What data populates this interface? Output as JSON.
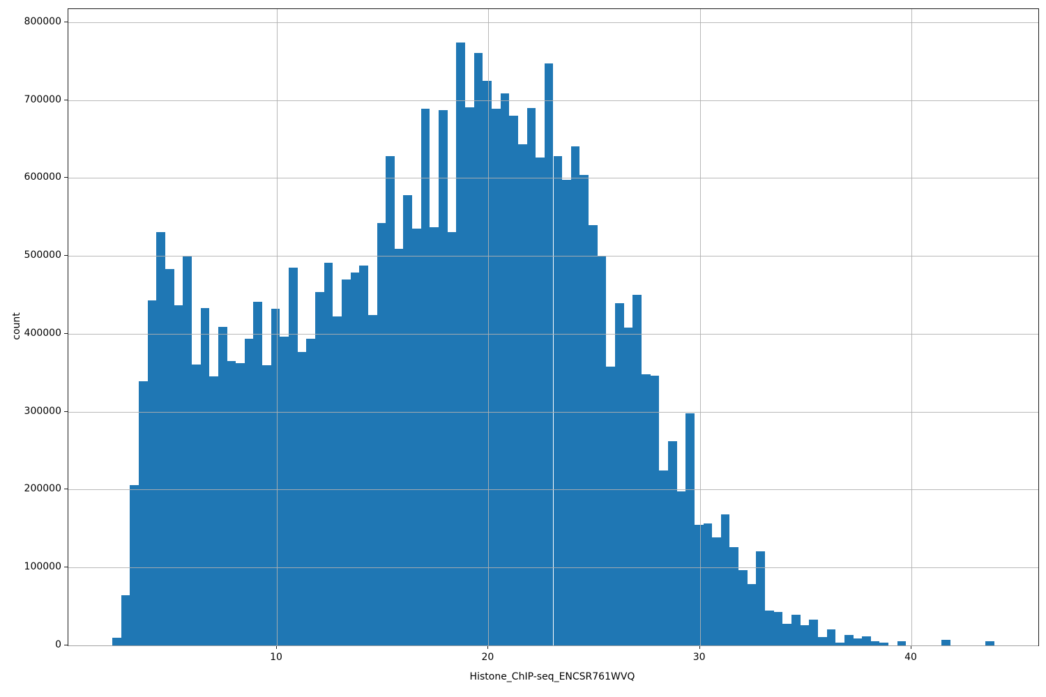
{
  "chart_data": {
    "type": "bar",
    "subtype": "histogram",
    "title": "",
    "xlabel": "Histone_ChIP-seq_ENCSR761WVQ",
    "ylabel": "count",
    "bin_start": 2.22,
    "bin_width": 0.417,
    "counts": [
      9600,
      64700,
      206000,
      339000,
      443000,
      531000,
      483000,
      437000,
      499000,
      361000,
      433000,
      345000,
      409000,
      365000,
      362000,
      394000,
      441000,
      360000,
      432000,
      396000,
      485000,
      377000,
      394000,
      454000,
      491000,
      422000,
      470000,
      479000,
      488000,
      424000,
      542000,
      628000,
      509000,
      578000,
      535000,
      689000,
      537000,
      687000,
      531000,
      774000,
      691000,
      761000,
      725000,
      689000,
      709000,
      680000,
      643000,
      690000,
      626000,
      747000,
      628000,
      598000,
      641000,
      604000,
      540000,
      500000,
      358000,
      439000,
      408000,
      450000,
      348000,
      346000,
      225000,
      262000,
      198000,
      298000,
      155000,
      157000,
      139000,
      168000,
      126000,
      97000,
      79000,
      121000,
      45000,
      43000,
      28000,
      39000,
      26000,
      33000,
      11000,
      21000,
      4000,
      13000,
      9000,
      12000,
      5000,
      4000,
      0,
      5000,
      0,
      0,
      0,
      0,
      7000,
      0,
      0,
      0,
      0,
      5000
    ],
    "x_ticks": [
      10,
      20,
      30,
      40
    ],
    "y_ticks": [
      0,
      100000,
      200000,
      300000,
      400000,
      500000,
      600000,
      700000,
      800000
    ],
    "xlim": [
      0.14,
      46.0
    ],
    "ylim": [
      0,
      817000
    ],
    "grid": true,
    "legend_position": "none",
    "bar_color": "#1f77b4",
    "grid_color": "#b0b0b0",
    "background_color": "#ffffff",
    "axis_color": "#1a1a1a"
  }
}
